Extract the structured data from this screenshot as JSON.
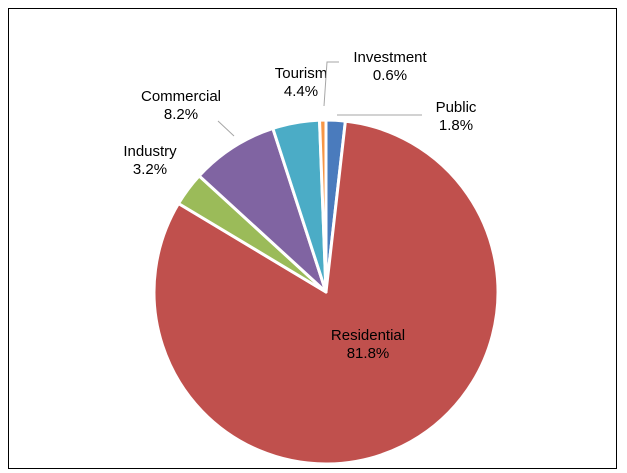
{
  "chart_data": {
    "type": "pie",
    "title": "",
    "categories": [
      "Public",
      "Residential",
      "Industry",
      "Commercial",
      "Tourism",
      "Investment"
    ],
    "values": [
      1.8,
      81.8,
      3.2,
      8.2,
      4.4,
      0.6
    ],
    "value_labels": [
      "1.8%",
      "81.8%",
      "3.2%",
      "8.2%",
      "4.4%",
      "0.6%"
    ],
    "colors": [
      "#4a7bbd",
      "#c0504d",
      "#9bbb59",
      "#8064a2",
      "#4bacc6",
      "#f79646"
    ],
    "legend": "none",
    "data_labels": "category name and percentage",
    "leader_lines": [
      "Public",
      "Commercial",
      "Investment"
    ]
  }
}
